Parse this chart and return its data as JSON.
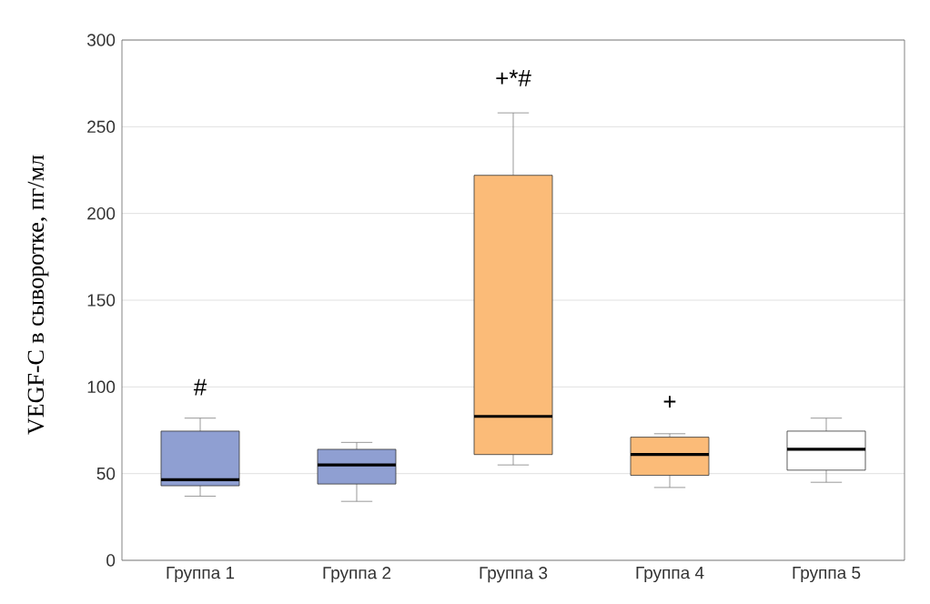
{
  "chart_data": {
    "type": "box",
    "ylabel": "VEGF-C в сыворотке, пг/мл",
    "categories": [
      "Группа 1",
      "Группа 2",
      "Группа 3",
      "Группа 4",
      "Группа 5"
    ],
    "boxes": [
      {
        "low": 37,
        "q1": 43,
        "median": 46.5,
        "q3": 74.5,
        "high": 82
      },
      {
        "low": 34,
        "q1": 44,
        "median": 55,
        "q3": 64,
        "high": 68
      },
      {
        "low": 55,
        "q1": 61,
        "median": 83,
        "q3": 222,
        "high": 258
      },
      {
        "low": 42,
        "q1": 49,
        "median": 61,
        "q3": 71,
        "high": 73
      },
      {
        "low": 45,
        "q1": 52,
        "median": 64,
        "q3": 74.5,
        "high": 82
      }
    ],
    "colors": [
      "#8f9fd2",
      "#8f9fd2",
      "#fbbb78",
      "#fbbb78",
      "#ffffff"
    ],
    "ylim": [
      0,
      300
    ],
    "yticks": [
      0,
      50,
      100,
      150,
      200,
      250,
      300
    ],
    "grid": "y",
    "annotations": [
      "#",
      "+*#",
      "+"
    ]
  }
}
